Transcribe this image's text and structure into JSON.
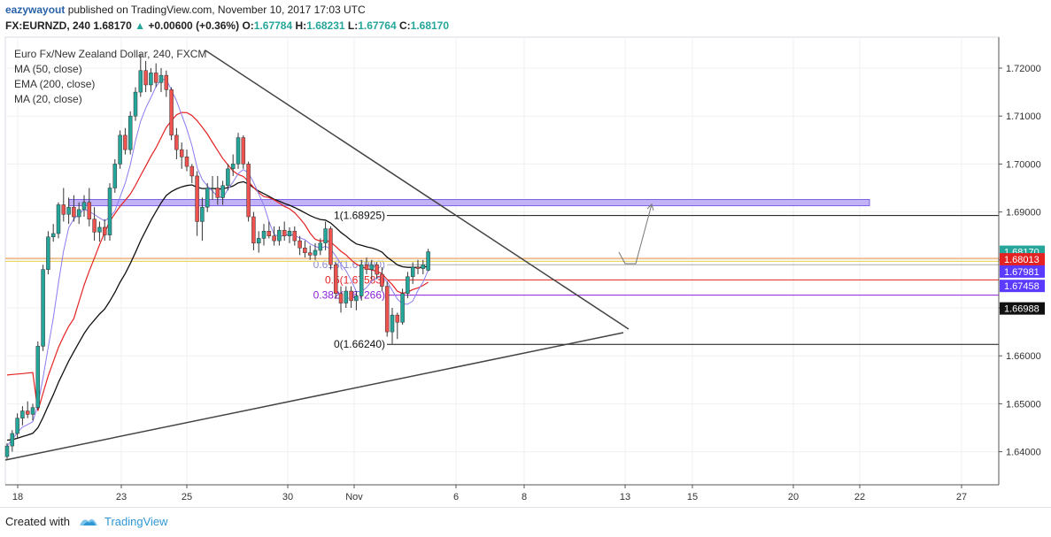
{
  "header": {
    "username": "eazywayout",
    "published_text": "published on TradingView.com, November 10, 2017 17:03 UTC",
    "symbol": "FX:EURNZD, 240",
    "last": "1.68170",
    "change": "+0.00600 (+0.36%)",
    "o_label": "O:",
    "o": "1.67784",
    "h_label": "H:",
    "h": "1.68231",
    "l_label": "L:",
    "l": "1.67764",
    "c_label": "C:",
    "c": "1.68170"
  },
  "footer": {
    "created_with": "Created with",
    "brand": "TradingView"
  },
  "colors": {
    "up_candle": "#26a69a",
    "down_candle": "#ef5350",
    "ma50": "#e52222",
    "ema200": "#111111",
    "ma20": "#8a7cf0",
    "zone": "#b9a6f5",
    "fib_618": "#6f6fd9",
    "fib_05": "#e52222",
    "fib_0382": "#8a1fd8"
  },
  "chart_data": {
    "type": "candlestick",
    "title": "Euro Fx/New Zealand Dollar, 240, FXCM",
    "indicators": [
      "MA (50, close)",
      "EMA (200, close)",
      "MA (20, close)"
    ],
    "x_tick_labels": [
      "18",
      "23",
      "25",
      "30",
      "Nov",
      "6",
      "8",
      "13",
      "15",
      "20",
      "22",
      "27"
    ],
    "y_tick_labels": [
      "1.72000",
      "1.71000",
      "1.70000",
      "1.69000",
      "1.68000",
      "1.67000",
      "1.66000",
      "1.65000",
      "1.64000"
    ],
    "ylim": [
      1.6365,
      1.7275
    ],
    "price_badges": [
      {
        "label": "1.68170",
        "value": 1.6817,
        "color": "#26a69a"
      },
      {
        "label": "56:27",
        "value": 1.6797,
        "color": "#26a69a"
      },
      {
        "label": "1.68013",
        "value": 1.68013,
        "color": "#e52222"
      },
      {
        "label": "1.67981",
        "value": 1.67758,
        "color": "#5b3bff"
      },
      {
        "label": "1.67458",
        "value": 1.67458,
        "color": "#5b3bff"
      },
      {
        "label": "1.66988",
        "value": 1.66988,
        "color": "#111111"
      }
    ],
    "fib_levels": [
      {
        "label": "1(1.68925)",
        "value": 1.68925
      },
      {
        "label": "0.618(1.67900)",
        "value": 1.679
      },
      {
        "label": "0.5(1.67583)",
        "value": 1.67583
      },
      {
        "label": "0.382(1.67266)",
        "value": 1.67266
      },
      {
        "label": "0(1.66240)",
        "value": 1.6624
      }
    ],
    "resistance_zone": [
      1.6913,
      1.6926
    ],
    "candles": [
      {
        "o": 1.639,
        "h": 1.6418,
        "l": 1.6385,
        "c": 1.6412
      },
      {
        "o": 1.6412,
        "h": 1.6445,
        "l": 1.64,
        "c": 1.6438
      },
      {
        "o": 1.6438,
        "h": 1.648,
        "l": 1.6428,
        "c": 1.647
      },
      {
        "o": 1.647,
        "h": 1.6495,
        "l": 1.6455,
        "c": 1.6485
      },
      {
        "o": 1.6485,
        "h": 1.6505,
        "l": 1.647,
        "c": 1.6478
      },
      {
        "o": 1.6478,
        "h": 1.65,
        "l": 1.6465,
        "c": 1.6492
      },
      {
        "o": 1.6492,
        "h": 1.663,
        "l": 1.6488,
        "c": 1.662
      },
      {
        "o": 1.662,
        "h": 1.679,
        "l": 1.661,
        "c": 1.678
      },
      {
        "o": 1.678,
        "h": 1.686,
        "l": 1.677,
        "c": 1.6848
      },
      {
        "o": 1.6848,
        "h": 1.6875,
        "l": 1.6838,
        "c": 1.6855
      },
      {
        "o": 1.6855,
        "h": 1.692,
        "l": 1.6845,
        "c": 1.6915
      },
      {
        "o": 1.6915,
        "h": 1.695,
        "l": 1.688,
        "c": 1.6895
      },
      {
        "o": 1.6895,
        "h": 1.693,
        "l": 1.6875,
        "c": 1.691
      },
      {
        "o": 1.691,
        "h": 1.6935,
        "l": 1.688,
        "c": 1.689
      },
      {
        "o": 1.689,
        "h": 1.692,
        "l": 1.6875,
        "c": 1.6905
      },
      {
        "o": 1.6905,
        "h": 1.6935,
        "l": 1.689,
        "c": 1.692
      },
      {
        "o": 1.692,
        "h": 1.695,
        "l": 1.687,
        "c": 1.6885
      },
      {
        "o": 1.6885,
        "h": 1.691,
        "l": 1.684,
        "c": 1.6858
      },
      {
        "o": 1.6858,
        "h": 1.688,
        "l": 1.6838,
        "c": 1.6868
      },
      {
        "o": 1.6868,
        "h": 1.6885,
        "l": 1.684,
        "c": 1.6852
      },
      {
        "o": 1.6852,
        "h": 1.696,
        "l": 1.684,
        "c": 1.695
      },
      {
        "o": 1.695,
        "h": 1.701,
        "l": 1.694,
        "c": 1.7
      },
      {
        "o": 1.7,
        "h": 1.707,
        "l": 1.699,
        "c": 1.706
      },
      {
        "o": 1.706,
        "h": 1.7075,
        "l": 1.702,
        "c": 1.703
      },
      {
        "o": 1.703,
        "h": 1.711,
        "l": 1.702,
        "c": 1.71
      },
      {
        "o": 1.71,
        "h": 1.716,
        "l": 1.709,
        "c": 1.715
      },
      {
        "o": 1.715,
        "h": 1.723,
        "l": 1.714,
        "c": 1.7195
      },
      {
        "o": 1.7195,
        "h": 1.7215,
        "l": 1.715,
        "c": 1.7165
      },
      {
        "o": 1.7165,
        "h": 1.72,
        "l": 1.715,
        "c": 1.719
      },
      {
        "o": 1.719,
        "h": 1.721,
        "l": 1.716,
        "c": 1.717
      },
      {
        "o": 1.717,
        "h": 1.72,
        "l": 1.715,
        "c": 1.7185
      },
      {
        "o": 1.7185,
        "h": 1.7195,
        "l": 1.714,
        "c": 1.7155
      },
      {
        "o": 1.7155,
        "h": 1.716,
        "l": 1.705,
        "c": 1.706
      },
      {
        "o": 1.706,
        "h": 1.7075,
        "l": 1.701,
        "c": 1.703
      },
      {
        "o": 1.703,
        "h": 1.7045,
        "l": 1.699,
        "c": 1.7015
      },
      {
        "o": 1.7015,
        "h": 1.703,
        "l": 1.6985,
        "c": 1.6995
      },
      {
        "o": 1.6995,
        "h": 1.7,
        "l": 1.696,
        "c": 1.6975
      },
      {
        "o": 1.6975,
        "h": 1.6985,
        "l": 1.685,
        "c": 1.688
      },
      {
        "o": 1.688,
        "h": 1.693,
        "l": 1.684,
        "c": 1.691
      },
      {
        "o": 1.691,
        "h": 1.696,
        "l": 1.69,
        "c": 1.695
      },
      {
        "o": 1.695,
        "h": 1.6975,
        "l": 1.6925,
        "c": 1.695
      },
      {
        "o": 1.695,
        "h": 1.6975,
        "l": 1.6915,
        "c": 1.693
      },
      {
        "o": 1.693,
        "h": 1.6965,
        "l": 1.6915,
        "c": 1.6955
      },
      {
        "o": 1.6955,
        "h": 1.7,
        "l": 1.6945,
        "c": 1.699
      },
      {
        "o": 1.699,
        "h": 1.702,
        "l": 1.6975,
        "c": 1.7
      },
      {
        "o": 1.7,
        "h": 1.7065,
        "l": 1.699,
        "c": 1.7055
      },
      {
        "o": 1.7055,
        "h": 1.706,
        "l": 1.699,
        "c": 1.7
      },
      {
        "o": 1.7,
        "h": 1.7005,
        "l": 1.688,
        "c": 1.689
      },
      {
        "o": 1.689,
        "h": 1.69,
        "l": 1.682,
        "c": 1.6835
      },
      {
        "o": 1.6835,
        "h": 1.686,
        "l": 1.6815,
        "c": 1.6845
      },
      {
        "o": 1.6845,
        "h": 1.6875,
        "l": 1.683,
        "c": 1.686
      },
      {
        "o": 1.686,
        "h": 1.688,
        "l": 1.6845,
        "c": 1.685
      },
      {
        "o": 1.685,
        "h": 1.687,
        "l": 1.683,
        "c": 1.684
      },
      {
        "o": 1.684,
        "h": 1.687,
        "l": 1.683,
        "c": 1.6862
      },
      {
        "o": 1.6862,
        "h": 1.688,
        "l": 1.684,
        "c": 1.685
      },
      {
        "o": 1.685,
        "h": 1.6868,
        "l": 1.6835,
        "c": 1.686
      },
      {
        "o": 1.686,
        "h": 1.687,
        "l": 1.683,
        "c": 1.684
      },
      {
        "o": 1.684,
        "h": 1.685,
        "l": 1.681,
        "c": 1.6825
      },
      {
        "o": 1.6825,
        "h": 1.684,
        "l": 1.6805,
        "c": 1.6815
      },
      {
        "o": 1.6815,
        "h": 1.683,
        "l": 1.68,
        "c": 1.681
      },
      {
        "o": 1.681,
        "h": 1.6835,
        "l": 1.68,
        "c": 1.682
      },
      {
        "o": 1.682,
        "h": 1.6845,
        "l": 1.681,
        "c": 1.6835
      },
      {
        "o": 1.6835,
        "h": 1.688,
        "l": 1.682,
        "c": 1.6865
      },
      {
        "o": 1.6865,
        "h": 1.687,
        "l": 1.678,
        "c": 1.679
      },
      {
        "o": 1.679,
        "h": 1.6795,
        "l": 1.672,
        "c": 1.673
      },
      {
        "o": 1.673,
        "h": 1.6745,
        "l": 1.669,
        "c": 1.671
      },
      {
        "o": 1.671,
        "h": 1.6745,
        "l": 1.67,
        "c": 1.6735
      },
      {
        "o": 1.6735,
        "h": 1.6745,
        "l": 1.67,
        "c": 1.6715
      },
      {
        "o": 1.6715,
        "h": 1.6735,
        "l": 1.6695,
        "c": 1.6725
      },
      {
        "o": 1.6725,
        "h": 1.68,
        "l": 1.6715,
        "c": 1.679
      },
      {
        "o": 1.679,
        "h": 1.6805,
        "l": 1.677,
        "c": 1.678
      },
      {
        "o": 1.678,
        "h": 1.68,
        "l": 1.676,
        "c": 1.679
      },
      {
        "o": 1.679,
        "h": 1.6795,
        "l": 1.676,
        "c": 1.677
      },
      {
        "o": 1.677,
        "h": 1.6785,
        "l": 1.6735,
        "c": 1.6745
      },
      {
        "o": 1.6745,
        "h": 1.6755,
        "l": 1.664,
        "c": 1.665
      },
      {
        "o": 1.665,
        "h": 1.67,
        "l": 1.6625,
        "c": 1.6685
      },
      {
        "o": 1.6685,
        "h": 1.669,
        "l": 1.6635,
        "c": 1.667
      },
      {
        "o": 1.667,
        "h": 1.674,
        "l": 1.6665,
        "c": 1.673
      },
      {
        "o": 1.673,
        "h": 1.6775,
        "l": 1.672,
        "c": 1.6765
      },
      {
        "o": 1.6765,
        "h": 1.6795,
        "l": 1.675,
        "c": 1.6785
      },
      {
        "o": 1.6785,
        "h": 1.68,
        "l": 1.677,
        "c": 1.6782
      },
      {
        "o": 1.6782,
        "h": 1.68,
        "l": 1.677,
        "c": 1.679
      },
      {
        "o": 1.67784,
        "h": 1.68231,
        "l": 1.67764,
        "c": 1.6817
      }
    ]
  }
}
